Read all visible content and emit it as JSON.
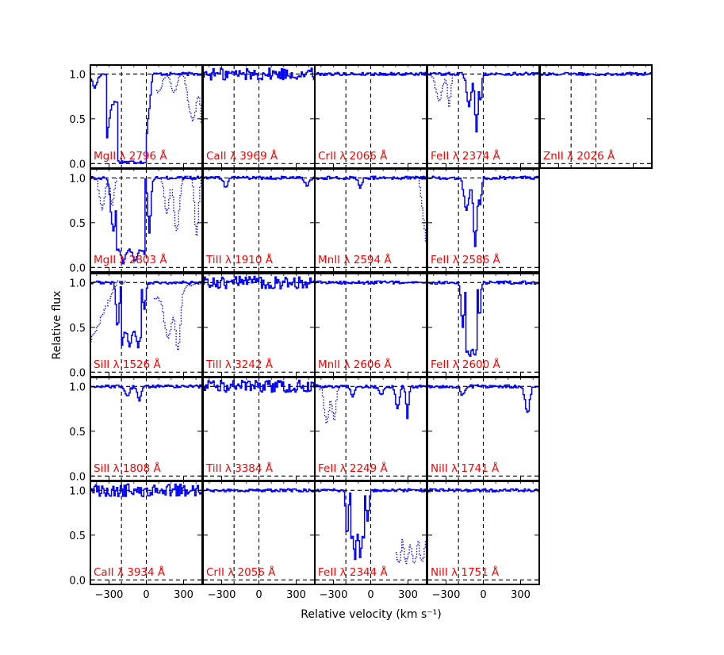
{
  "chart_data": {
    "type": "line",
    "xlabel": "Relative velocity (km s⁻¹)",
    "ylabel": "Relative flux",
    "xlim": [
      -450,
      450
    ],
    "ylim": [
      -0.05,
      1.1
    ],
    "yticks": [
      0.0,
      0.5,
      1.0
    ],
    "ytick_labels": [
      "0.0",
      "0.5",
      "1.0"
    ],
    "xticks": [
      -300,
      0,
      300
    ],
    "xtick_labels": [
      "−300",
      "0",
      "300"
    ],
    "vlines": [
      -200,
      0
    ],
    "hlines": [
      0,
      1
    ],
    "series_color": "#0000ff",
    "label_color": "#ff0000",
    "panels": [
      {
        "label": "MgII λ 2796 Å",
        "row": 0,
        "col": 0,
        "profile": "mg2796"
      },
      {
        "label": "CaII λ 3969 Å",
        "row": 0,
        "col": 1,
        "profile": "noisy"
      },
      {
        "label": "CrII λ 2066 Å",
        "row": 0,
        "col": 2,
        "profile": "flat"
      },
      {
        "label": "FeII λ 2374 Å",
        "row": 0,
        "col": 3,
        "profile": "fe2374"
      },
      {
        "label": "ZnII λ 2026 Å",
        "row": 0,
        "col": 4,
        "profile": "flat"
      },
      {
        "label": "MgII λ 2803 Å",
        "row": 1,
        "col": 0,
        "profile": "mg2803"
      },
      {
        "label": "TiII λ 1910 Å",
        "row": 1,
        "col": 1,
        "profile": "weak"
      },
      {
        "label": "MnII λ 2594 Å",
        "row": 1,
        "col": 2,
        "profile": "mn2594"
      },
      {
        "label": "FeII λ 2586 Å",
        "row": 1,
        "col": 3,
        "profile": "fe2586"
      },
      {
        "label": "SiII λ 1526 Å",
        "row": 2,
        "col": 0,
        "profile": "si1526"
      },
      {
        "label": "TiII λ 3242 Å",
        "row": 2,
        "col": 1,
        "profile": "noisy"
      },
      {
        "label": "MnII λ 2606 Å",
        "row": 2,
        "col": 2,
        "profile": "flat"
      },
      {
        "label": "FeII λ 2600 Å",
        "row": 2,
        "col": 3,
        "profile": "fe2600"
      },
      {
        "label": "SiII λ 1808 Å",
        "row": 3,
        "col": 0,
        "profile": "si1808"
      },
      {
        "label": "TiII λ 3384 Å",
        "row": 3,
        "col": 1,
        "profile": "noisy"
      },
      {
        "label": "FeII λ 2249 Å",
        "row": 3,
        "col": 2,
        "profile": "fe2249"
      },
      {
        "label": "NiII λ 1741 Å",
        "row": 3,
        "col": 3,
        "profile": "ni1741"
      },
      {
        "label": "CaII λ 3934 Å",
        "row": 4,
        "col": 0,
        "profile": "noisy"
      },
      {
        "label": "CrII λ 2056 Å",
        "row": 4,
        "col": 1,
        "profile": "flat"
      },
      {
        "label": "FeII λ 2344 Å",
        "row": 4,
        "col": 2,
        "profile": "fe2344"
      },
      {
        "label": "NiII λ 1751 Å",
        "row": 4,
        "col": 3,
        "profile": "flat"
      }
    ]
  }
}
